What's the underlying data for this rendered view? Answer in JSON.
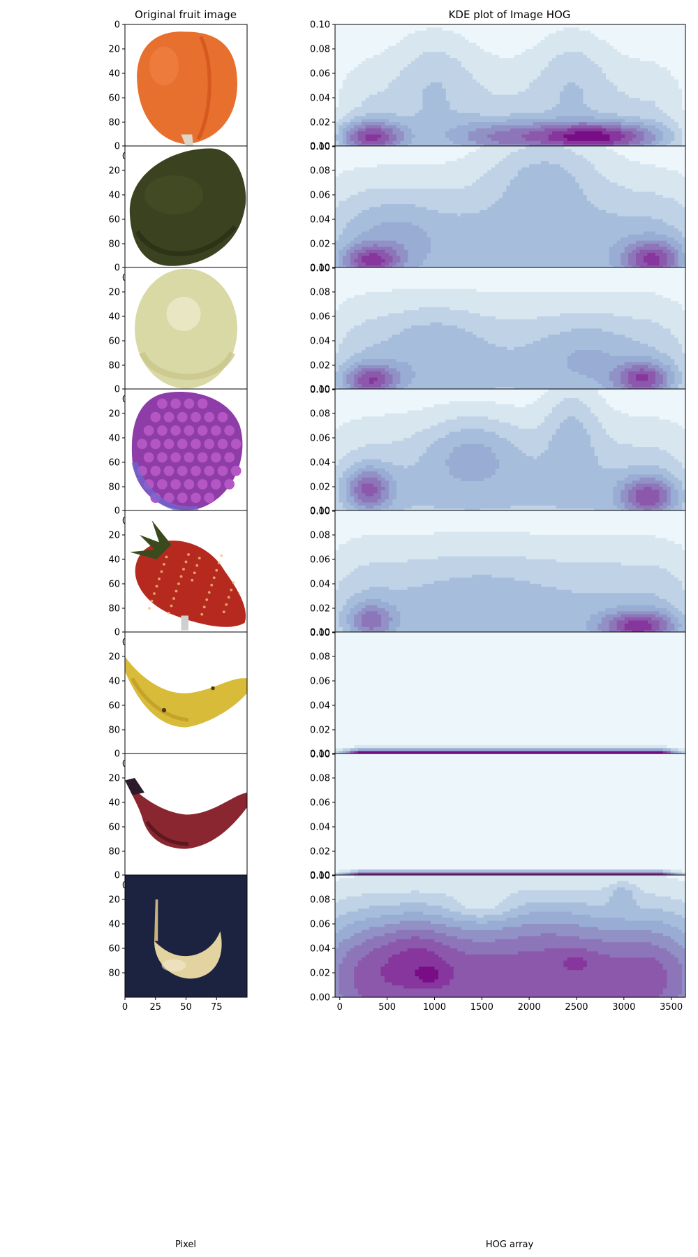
{
  "left_title": "Original fruit image",
  "right_title": "KDE plot of Image HOG",
  "left_xlabel": "Pixel",
  "right_xlabel": "HOG array",
  "chart_data": [
    {
      "type": "image-grid",
      "title": "Original fruit image",
      "xlabel": "Pixel",
      "x_ticks": [
        "0",
        "25",
        "50",
        "75"
      ],
      "y_ticks": [
        "0",
        "20",
        "40",
        "60",
        "80"
      ],
      "xlim": [
        0,
        100
      ],
      "ylim": [
        100,
        0
      ],
      "images": [
        {
          "subject": "apricot",
          "background": "#ffffff",
          "colors": [
            "#e8702f",
            "#d65a1f",
            "#f1874a"
          ]
        },
        {
          "subject": "avocado",
          "background": "#ffffff",
          "colors": [
            "#3b4220",
            "#2c3017",
            "#4c5428"
          ]
        },
        {
          "subject": "green-grape",
          "background": "#ffffff",
          "colors": [
            "#d9d9a6",
            "#c9c58a",
            "#eceacb"
          ]
        },
        {
          "subject": "raspberry",
          "background": "#ffffff",
          "colors": [
            "#b457c4",
            "#8e3ca8",
            "#6d6ad0"
          ]
        },
        {
          "subject": "strawberry",
          "background": "#ffffff",
          "colors": [
            "#b6291f",
            "#8f1a14",
            "#3a4a1d"
          ]
        },
        {
          "subject": "banana",
          "background": "#ffffff",
          "colors": [
            "#d9bb3a",
            "#c5a22a",
            "#4b3c16"
          ]
        },
        {
          "subject": "red-banana",
          "background": "#ffffff",
          "colors": [
            "#8a2630",
            "#5e1720",
            "#2a1a2a"
          ]
        },
        {
          "subject": "banana-dark-background",
          "background": "#1b2340",
          "colors": [
            "#e3d3a0",
            "#c8b47a",
            "#f4ead0"
          ]
        }
      ]
    },
    {
      "type": "kde-contour",
      "title": "KDE plot of Image HOG",
      "xlabel": "HOG array",
      "x_ticks": [
        "0",
        "500",
        "1000",
        "1500",
        "2000",
        "2500",
        "3000",
        "3500"
      ],
      "y_ticks": [
        "0.00",
        "0.02",
        "0.04",
        "0.06",
        "0.08",
        "0.10"
      ],
      "xlim": [
        -50,
        3650
      ],
      "ylim": [
        0,
        0.1
      ],
      "colormap": [
        "#edf6fa",
        "#d8e6f0",
        "#bfd2e6",
        "#a6bedc",
        "#98acd4",
        "#9191c6",
        "#8c76b9",
        "#8c58ab",
        "#86369c",
        "#780d85",
        "#650a5f"
      ],
      "panels": [
        {
          "base": 2.3,
          "minfloor": 0.28,
          "peaks": [
            [
              330,
              0.008,
              6.0,
              350,
              0.013
            ],
            [
              2700,
              0.008,
              7.0,
              650,
              0.012
            ],
            [
              1700,
              0.008,
              3.5,
              600,
              0.014
            ],
            [
              1000,
              0.06,
              1.5,
              420,
              0.04
            ],
            [
              2450,
              0.06,
              1.5,
              380,
              0.04
            ]
          ]
        },
        {
          "base": 3.6,
          "minfloor": 0.7,
          "peaks": [
            [
              330,
              0.006,
              4.8,
              300,
              0.013
            ],
            [
              3300,
              0.007,
              5.0,
              300,
              0.015
            ],
            [
              2150,
              0.08,
              2.2,
              600,
              0.035
            ],
            [
              600,
              0.03,
              1.0,
              400,
              0.03
            ]
          ]
        },
        {
          "base": 3.1,
          "minfloor": 0.55,
          "peaks": [
            [
              330,
              0.008,
              5.0,
              300,
              0.013
            ],
            [
              3200,
              0.009,
              5.0,
              300,
              0.013
            ],
            [
              1000,
              0.04,
              1.2,
              500,
              0.03
            ],
            [
              2600,
              0.03,
              1.2,
              500,
              0.03
            ]
          ]
        },
        {
          "base": 3.0,
          "minfloor": 0.6,
          "peaks": [
            [
              300,
              0.018,
              4.5,
              240,
              0.017
            ],
            [
              3250,
              0.012,
              5.0,
              300,
              0.016
            ],
            [
              1400,
              0.05,
              2.2,
              500,
              0.03
            ],
            [
              2450,
              0.07,
              2.0,
              300,
              0.04
            ]
          ]
        },
        {
          "base": 3.2,
          "minfloor": 0.6,
          "peaks": [
            [
              330,
              0.01,
              3.5,
              250,
              0.015
            ],
            [
              3150,
              0.005,
              5.5,
              400,
              0.013
            ],
            [
              1500,
              0.04,
              0.6,
              700,
              0.03
            ]
          ]
        },
        {
          "base": 0.35,
          "minfloor": 0.0,
          "band": [
            10.0,
            0.004
          ],
          "peaks": [
            [
              350,
              0.065,
              0.7,
              200,
              0.02
            ],
            [
              1500,
              0.06,
              0.5,
              300,
              0.02
            ],
            [
              2500,
              0.06,
              0.5,
              400,
              0.02
            ]
          ]
        },
        {
          "base": 0.1,
          "minfloor": 0.0,
          "band": [
            9.5,
            0.0035
          ],
          "peaks": [
            [
              480,
              0.042,
              0.7,
              250,
              0.018
            ],
            [
              3000,
              0.032,
              0.5,
              300,
              0.015
            ],
            [
              1600,
              0.028,
              0.4,
              400,
              0.012
            ]
          ]
        },
        {
          "base": 7.6,
          "minfloor": 0.7,
          "peaks": [
            [
              800,
              0.04,
              1.6,
              400,
              0.03
            ],
            [
              2200,
              0.06,
              0.8,
              500,
              0.03
            ],
            [
              2980,
              0.085,
              1.6,
              150,
              0.01
            ],
            [
              950,
              0.018,
              1.2,
              150,
              0.008
            ],
            [
              2500,
              0.03,
              0.8,
              200,
              0.01
            ],
            [
              1500,
              0.075,
              -1.4,
              300,
              0.012
            ]
          ]
        }
      ]
    }
  ]
}
